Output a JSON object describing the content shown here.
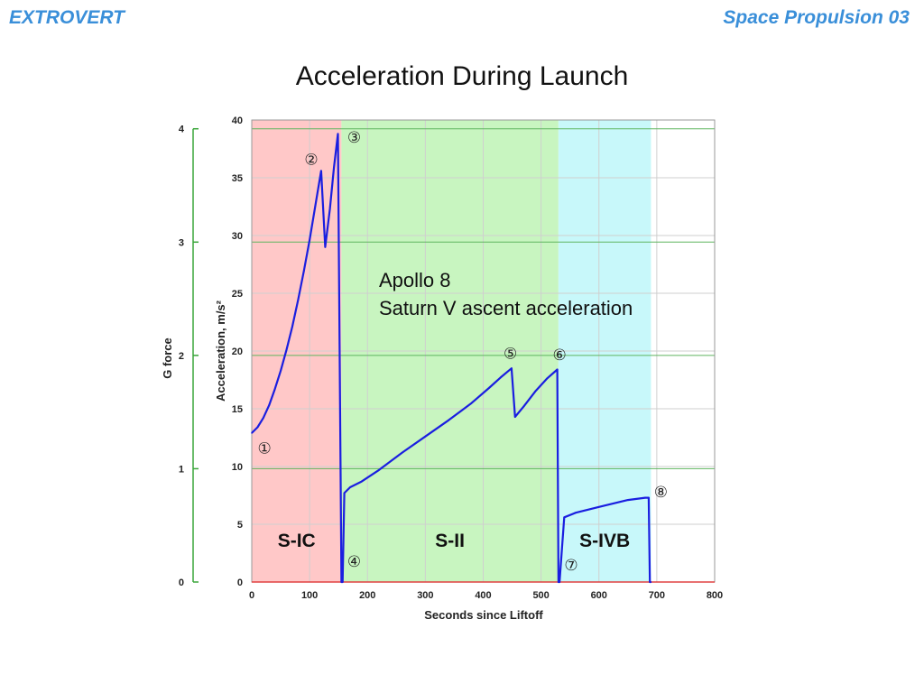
{
  "header": {
    "left": "EXTROVERT",
    "right": "Space Propulsion 03"
  },
  "slide_title": "Acceleration During Launch",
  "chart_data": {
    "type": "line",
    "title": "",
    "xlabel": "Seconds since Liftoff",
    "ylabel": "Acceleration, m/s²",
    "y2label": "G force",
    "xlim": [
      0,
      800
    ],
    "ylim": [
      0,
      40
    ],
    "xticks": [
      0,
      100,
      200,
      300,
      400,
      500,
      600,
      700,
      800
    ],
    "yticks": [
      0,
      5,
      10,
      15,
      20,
      25,
      30,
      35,
      40
    ],
    "gticks": [
      0,
      1,
      2,
      3,
      4
    ],
    "g_value": 9.81,
    "grid": true,
    "annotation": [
      "Apollo 8",
      "Saturn V ascent acceleration"
    ],
    "stages": [
      {
        "name": "S-IC",
        "start": 0,
        "end": 155,
        "color": "#ffc8c8"
      },
      {
        "name": "S-II",
        "start": 155,
        "end": 530,
        "color": "#c8f5c0"
      },
      {
        "name": "S-IVB",
        "start": 530,
        "end": 690,
        "color": "#c8f8fa"
      }
    ],
    "series": [
      {
        "name": "",
        "color": "#1a1ee0",
        "x": [
          0,
          10,
          20,
          30,
          40,
          50,
          60,
          70,
          80,
          90,
          100,
          110,
          120,
          127,
          135,
          142,
          149,
          155,
          157,
          160,
          170,
          190,
          220,
          260,
          300,
          340,
          380,
          410,
          430,
          449,
          455,
          470,
          490,
          510,
          528,
          530,
          532,
          540,
          560,
          600,
          650,
          680,
          686,
          688,
          690
        ],
        "y": [
          12.9,
          13.4,
          14.2,
          15.3,
          16.7,
          18.3,
          20.1,
          22.1,
          24.4,
          26.9,
          29.6,
          32.6,
          35.6,
          29.0,
          32.3,
          35.9,
          38.8,
          0,
          0,
          7.7,
          8.2,
          8.7,
          9.7,
          11.2,
          12.6,
          14.0,
          15.5,
          16.8,
          17.7,
          18.5,
          14.3,
          15.2,
          16.5,
          17.6,
          18.4,
          0,
          0,
          5.6,
          6.0,
          6.5,
          7.1,
          7.3,
          7.3,
          0,
          0
        ]
      }
    ],
    "markers": [
      {
        "label": "①",
        "x": 22,
        "y": 11.6
      },
      {
        "label": "②",
        "x": 103,
        "y": 36.6
      },
      {
        "label": "③",
        "x": 177,
        "y": 38.5
      },
      {
        "label": "④",
        "x": 177,
        "y": 1.8
      },
      {
        "label": "⑤",
        "x": 447,
        "y": 19.8
      },
      {
        "label": "⑥",
        "x": 532,
        "y": 19.7
      },
      {
        "label": "⑦",
        "x": 552,
        "y": 1.5
      },
      {
        "label": "⑧",
        "x": 707,
        "y": 7.8
      }
    ]
  }
}
